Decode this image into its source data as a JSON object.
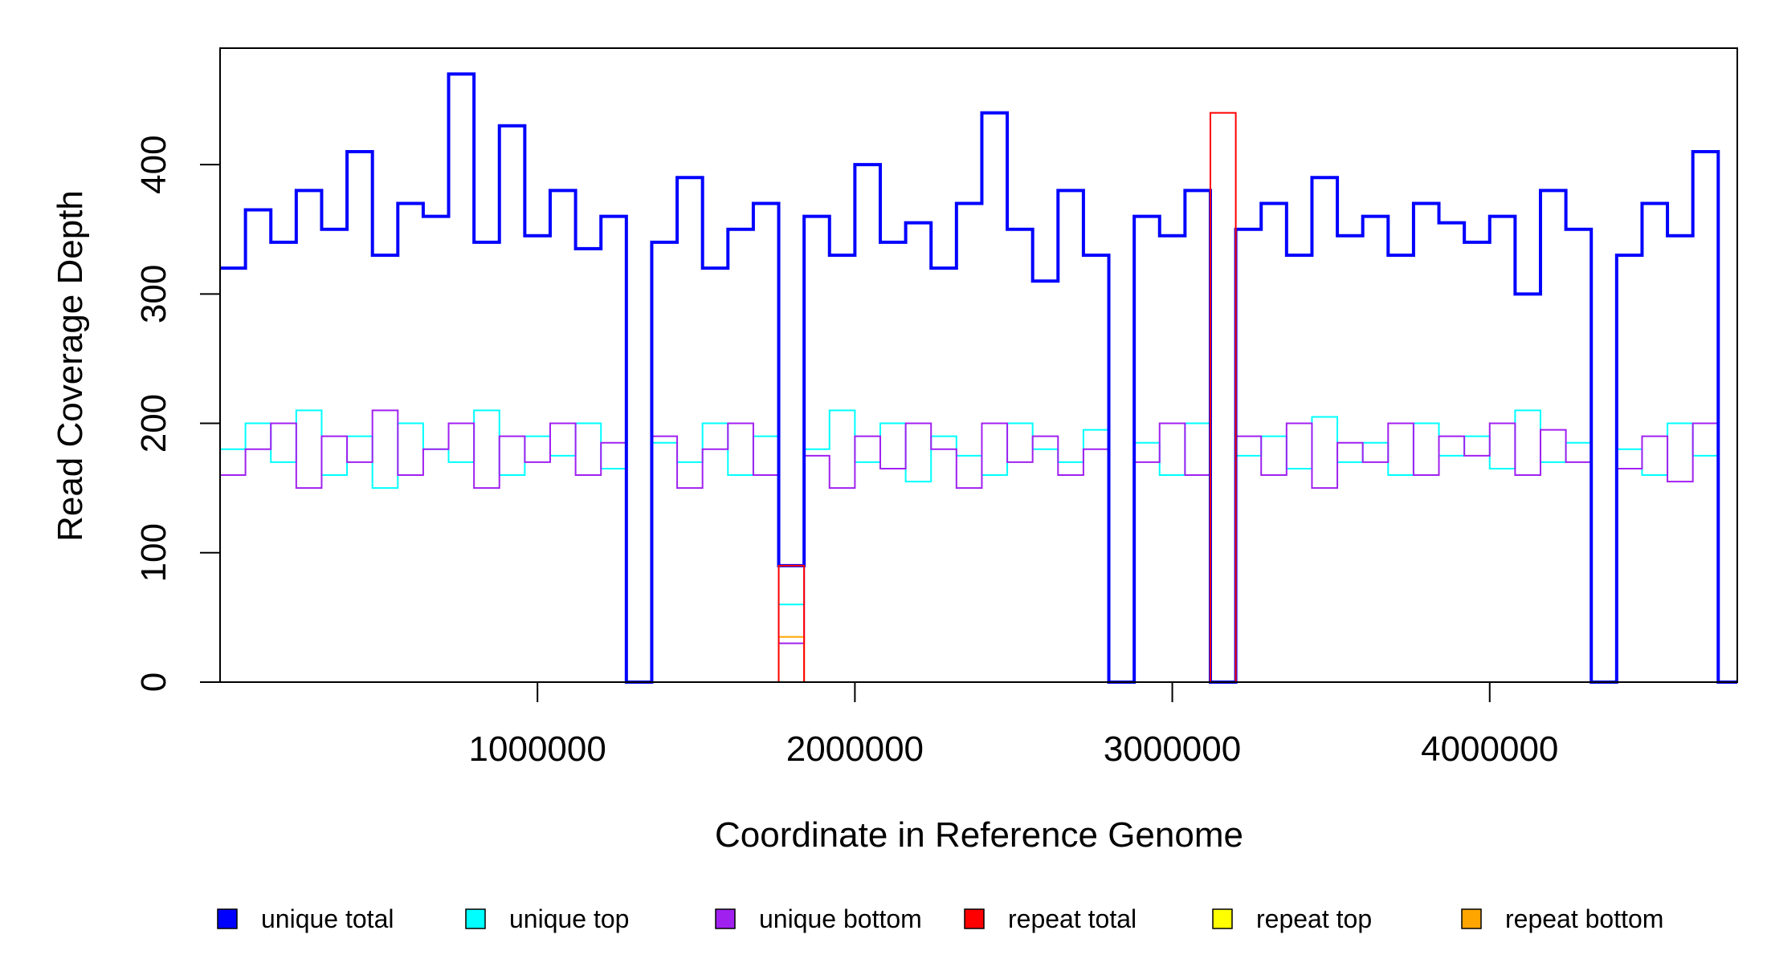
{
  "chart_data": {
    "type": "step",
    "xlabel": "Coordinate in Reference Genome",
    "ylabel": "Read Coverage Depth",
    "x": [
      0,
      80000,
      160000,
      240000,
      320000,
      400000,
      480000,
      560000,
      640000,
      720000,
      800000,
      880000,
      960000,
      1040000,
      1120000,
      1200000,
      1280000,
      1360000,
      1440000,
      1520000,
      1600000,
      1680000,
      1760000,
      1840000,
      1920000,
      2000000,
      2080000,
      2160000,
      2240000,
      2320000,
      2400000,
      2480000,
      2560000,
      2640000,
      2720000,
      2800000,
      2880000,
      2960000,
      3040000,
      3120000,
      3200000,
      3280000,
      3360000,
      3440000,
      3520000,
      3600000,
      3680000,
      3760000,
      3840000,
      3920000,
      4000000,
      4080000,
      4160000,
      4240000,
      4320000,
      4400000,
      4480000,
      4560000,
      4640000,
      4720000
    ],
    "series": [
      {
        "name": "unique total",
        "color": "#0000ff",
        "values": [
          320,
          365,
          340,
          380,
          350,
          410,
          330,
          370,
          360,
          470,
          340,
          430,
          345,
          380,
          335,
          360,
          0,
          340,
          390,
          320,
          350,
          370,
          90,
          360,
          330,
          400,
          340,
          355,
          320,
          370,
          440,
          350,
          310,
          380,
          330,
          0,
          360,
          345,
          380,
          0,
          350,
          370,
          330,
          390,
          345,
          360,
          330,
          370,
          355,
          340,
          360,
          300,
          380,
          350,
          0,
          330,
          370,
          345,
          410,
          0
        ]
      },
      {
        "name": "unique top",
        "color": "#00ffff",
        "values": [
          180,
          200,
          170,
          210,
          160,
          190,
          150,
          200,
          180,
          170,
          210,
          160,
          190,
          175,
          200,
          165,
          0,
          185,
          170,
          200,
          160,
          190,
          60,
          180,
          210,
          170,
          200,
          155,
          190,
          175,
          160,
          200,
          180,
          170,
          195,
          0,
          185,
          160,
          200,
          0,
          175,
          190,
          165,
          205,
          170,
          185,
          160,
          200,
          175,
          190,
          165,
          210,
          170,
          185,
          0,
          180,
          160,
          200,
          175,
          0
        ]
      },
      {
        "name": "unique bottom",
        "color": "#a020f0",
        "values": [
          160,
          180,
          200,
          150,
          190,
          170,
          210,
          160,
          180,
          200,
          150,
          190,
          170,
          200,
          160,
          185,
          0,
          190,
          150,
          180,
          200,
          160,
          30,
          175,
          150,
          190,
          165,
          200,
          180,
          150,
          200,
          170,
          190,
          160,
          180,
          0,
          170,
          200,
          160,
          0,
          190,
          160,
          200,
          150,
          185,
          170,
          200,
          160,
          190,
          175,
          200,
          160,
          195,
          170,
          0,
          165,
          190,
          155,
          200,
          0
        ]
      },
      {
        "name": "repeat total",
        "color": "#ff0000",
        "values": [
          0,
          0,
          0,
          0,
          0,
          0,
          0,
          0,
          0,
          0,
          0,
          0,
          0,
          0,
          0,
          0,
          0,
          0,
          0,
          0,
          0,
          0,
          90,
          0,
          0,
          0,
          0,
          0,
          0,
          0,
          0,
          0,
          0,
          0,
          0,
          0,
          0,
          0,
          0,
          440,
          0,
          0,
          0,
          0,
          0,
          0,
          0,
          0,
          0,
          0,
          0,
          0,
          0,
          0,
          0,
          0,
          0,
          0,
          0,
          0
        ]
      },
      {
        "name": "repeat top",
        "color": "#ffff00",
        "values": [
          0,
          0,
          0,
          0,
          0,
          0,
          0,
          0,
          0,
          0,
          0,
          0,
          0,
          0,
          0,
          0,
          0,
          0,
          0,
          0,
          0,
          0,
          0,
          0,
          0,
          0,
          0,
          0,
          0,
          0,
          0,
          0,
          0,
          0,
          0,
          0,
          0,
          0,
          0,
          0,
          0,
          0,
          0,
          0,
          0,
          0,
          0,
          0,
          0,
          0,
          0,
          0,
          0,
          0,
          0,
          0,
          0,
          0,
          0,
          0
        ]
      },
      {
        "name": "repeat bottom",
        "color": "#ffa500",
        "values": [
          0,
          0,
          0,
          0,
          0,
          0,
          0,
          0,
          0,
          0,
          0,
          0,
          0,
          0,
          0,
          0,
          0,
          0,
          0,
          0,
          0,
          0,
          35,
          0,
          0,
          0,
          0,
          0,
          0,
          0,
          0,
          0,
          0,
          0,
          0,
          0,
          0,
          0,
          0,
          0,
          0,
          0,
          0,
          0,
          0,
          0,
          0,
          0,
          0,
          0,
          0,
          0,
          0,
          0,
          0,
          0,
          0,
          0,
          0,
          0
        ]
      }
    ],
    "xlim": [
      0,
      4780000
    ],
    "xticks": [
      1000000,
      2000000,
      3000000,
      4000000
    ],
    "ylim": [
      0,
      490
    ],
    "yticks": [
      0,
      100,
      200,
      300,
      400
    ],
    "grid": false,
    "legend": "bottom"
  }
}
